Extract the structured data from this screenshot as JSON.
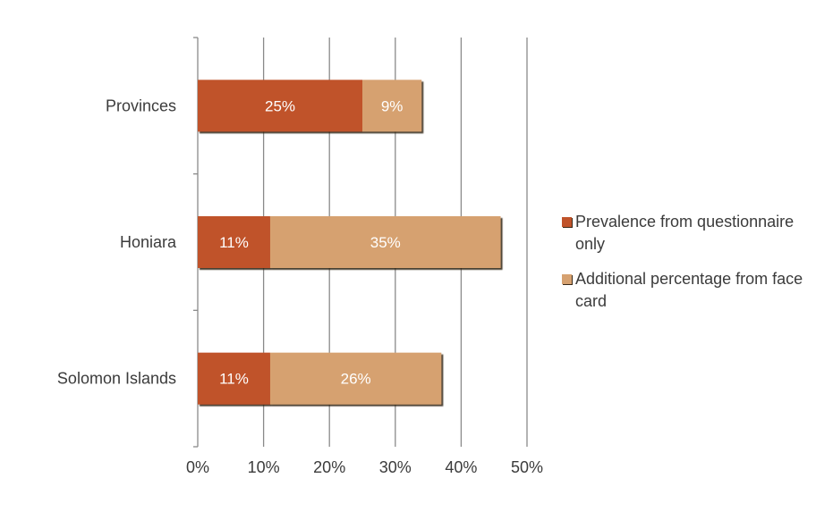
{
  "chart_data": {
    "type": "bar",
    "orientation": "horizontal",
    "stacked": true,
    "categories": [
      "Provinces",
      "Honiara",
      "Solomon Islands"
    ],
    "series": [
      {
        "name": "Prevalence from questionnaire only",
        "values": [
          25,
          11,
          11
        ],
        "labels": [
          "25%",
          "11%",
          "11%"
        ],
        "color": "#c0532a"
      },
      {
        "name": "Additional percentage from face card",
        "values": [
          9,
          35,
          26
        ],
        "labels": [
          "9%",
          "35%",
          "26%"
        ],
        "color": "#d6a170"
      }
    ],
    "xlim": [
      0,
      50
    ],
    "x_ticks": [
      0,
      10,
      20,
      30,
      40,
      50
    ],
    "x_tick_labels": [
      "0%",
      "10%",
      "20%",
      "30%",
      "40%",
      "50%"
    ],
    "grid": "vertical",
    "legend_position": "right",
    "title": "",
    "xlabel": "",
    "ylabel": ""
  }
}
